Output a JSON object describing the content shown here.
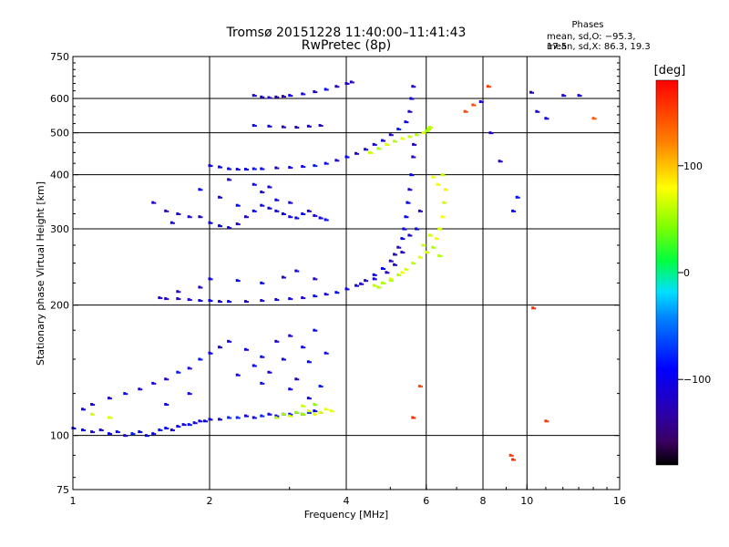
{
  "header": {
    "title": "Tromsø 20151228 11:40:00–11:41:43",
    "subtitle": "RwPretec (8p)"
  },
  "phase_info": {
    "heading": "Phases",
    "o_line": "mean, sd,O: −95.3, 17.5",
    "x_line": "mean, sd,X:  86.3, 19.3"
  },
  "colorbar": {
    "unit": "[deg]",
    "ticks": [
      {
        "value": 100,
        "label": "100"
      },
      {
        "value": 0,
        "label": "0"
      },
      {
        "value": -100,
        "label": "−100"
      }
    ],
    "range": [
      -180,
      180
    ]
  },
  "chart_data": {
    "type": "scatter",
    "xlabel": "Frequency [MHz]",
    "ylabel": "Stationary phase Virtual Height [km]",
    "xscale": "log",
    "yscale": "log",
    "xlim": [
      1,
      16
    ],
    "ylim": [
      75,
      750
    ],
    "xticks": [
      {
        "value": 1,
        "label": "1"
      },
      {
        "value": 2,
        "label": "2"
      },
      {
        "value": 4,
        "label": "4"
      },
      {
        "value": 6,
        "label": "6"
      },
      {
        "value": 8,
        "label": "8"
      },
      {
        "value": 10,
        "label": "10"
      },
      {
        "value": 16,
        "label": "16"
      }
    ],
    "yticks": [
      {
        "value": 75,
        "label": "75"
      },
      {
        "value": 100,
        "label": "100"
      },
      {
        "value": 200,
        "label": "200"
      },
      {
        "value": 300,
        "label": "300"
      },
      {
        "value": 400,
        "label": "400"
      },
      {
        "value": 500,
        "label": "500"
      },
      {
        "value": 600,
        "label": "600"
      },
      {
        "value": 750,
        "label": "750"
      }
    ],
    "grid_x": [
      2,
      4,
      6,
      8,
      10
    ],
    "grid_y": [
      100,
      200,
      300,
      400,
      500,
      600
    ],
    "grid": true,
    "color_scale": "rainbow phase [deg]",
    "series": [
      {
        "name": "",
        "color_phase": -95,
        "note": "",
        "points": [
          [
            1.0,
            104
          ],
          [
            1.05,
            103
          ],
          [
            1.1,
            102
          ],
          [
            1.15,
            103
          ],
          [
            1.2,
            101
          ],
          [
            1.25,
            102
          ],
          [
            1.3,
            100
          ],
          [
            1.35,
            101
          ],
          [
            1.4,
            102
          ],
          [
            1.45,
            100
          ],
          [
            1.5,
            101
          ],
          [
            1.55,
            103
          ],
          [
            1.6,
            104
          ],
          [
            1.65,
            103
          ],
          [
            1.7,
            105
          ],
          [
            1.75,
            106
          ],
          [
            1.8,
            106
          ],
          [
            1.85,
            107
          ],
          [
            1.9,
            108
          ],
          [
            1.95,
            108
          ],
          [
            2.0,
            109
          ],
          [
            2.1,
            109
          ],
          [
            2.2,
            110
          ],
          [
            2.3,
            110
          ],
          [
            2.4,
            111
          ],
          [
            2.5,
            110
          ],
          [
            2.6,
            111
          ],
          [
            2.7,
            112
          ],
          [
            2.8,
            111
          ],
          [
            2.9,
            112
          ],
          [
            3.0,
            112
          ],
          [
            3.1,
            113
          ],
          [
            3.2,
            112
          ],
          [
            3.3,
            113
          ],
          [
            3.4,
            114
          ],
          [
            3.5,
            113
          ]
        ]
      },
      {
        "name": "",
        "color_phase": -100,
        "points": [
          [
            1.05,
            115
          ],
          [
            1.1,
            118
          ],
          [
            1.2,
            122
          ],
          [
            1.3,
            125
          ],
          [
            1.4,
            128
          ],
          [
            1.5,
            132
          ],
          [
            1.6,
            135
          ],
          [
            1.7,
            140
          ],
          [
            1.8,
            143
          ],
          [
            1.9,
            150
          ],
          [
            2.0,
            155
          ],
          [
            2.1,
            160
          ],
          [
            2.2,
            165
          ],
          [
            2.4,
            158
          ],
          [
            2.5,
            145
          ],
          [
            2.6,
            152
          ],
          [
            2.7,
            140
          ],
          [
            2.8,
            165
          ],
          [
            2.9,
            150
          ],
          [
            3.0,
            170
          ],
          [
            3.1,
            135
          ],
          [
            3.2,
            160
          ],
          [
            3.3,
            148
          ],
          [
            3.4,
            175
          ],
          [
            3.5,
            130
          ],
          [
            3.6,
            155
          ],
          [
            1.6,
            118
          ],
          [
            1.8,
            125
          ],
          [
            2.3,
            138
          ],
          [
            2.6,
            132
          ],
          [
            3.0,
            128
          ],
          [
            3.3,
            122
          ]
        ]
      },
      {
        "name": "",
        "color_phase": 60,
        "points": [
          [
            2.8,
            110
          ],
          [
            2.9,
            112
          ],
          [
            3.0,
            111
          ],
          [
            3.1,
            113
          ],
          [
            3.2,
            112
          ],
          [
            3.3,
            114
          ],
          [
            3.4,
            112
          ],
          [
            3.5,
            113
          ],
          [
            3.6,
            115
          ],
          [
            3.7,
            114
          ],
          [
            1.2,
            110
          ],
          [
            1.1,
            112
          ],
          [
            3.2,
            117
          ],
          [
            3.4,
            118
          ]
        ]
      },
      {
        "name": "",
        "color_phase": -105,
        "points": [
          [
            1.55,
            208
          ],
          [
            1.6,
            207
          ],
          [
            1.7,
            207
          ],
          [
            1.8,
            206
          ],
          [
            1.9,
            205
          ],
          [
            2.0,
            205
          ],
          [
            2.1,
            204
          ],
          [
            2.2,
            204
          ],
          [
            2.4,
            204
          ],
          [
            2.6,
            205
          ],
          [
            2.8,
            206
          ],
          [
            3.0,
            207
          ],
          [
            3.2,
            208
          ],
          [
            3.4,
            210
          ],
          [
            3.6,
            212
          ],
          [
            3.8,
            214
          ],
          [
            4.0,
            218
          ],
          [
            4.2,
            222
          ],
          [
            4.4,
            228
          ],
          [
            4.6,
            235
          ],
          [
            4.8,
            243
          ],
          [
            5.0,
            253
          ],
          [
            5.1,
            262
          ],
          [
            5.2,
            272
          ],
          [
            5.3,
            285
          ],
          [
            5.35,
            300
          ],
          [
            5.4,
            320
          ],
          [
            5.45,
            345
          ],
          [
            5.5,
            370
          ],
          [
            5.55,
            400
          ],
          [
            5.6,
            440
          ],
          [
            5.62,
            470
          ],
          [
            1.7,
            215
          ],
          [
            1.9,
            220
          ],
          [
            2.0,
            230
          ],
          [
            2.3,
            228
          ],
          [
            2.6,
            225
          ],
          [
            2.9,
            232
          ],
          [
            3.1,
            240
          ],
          [
            3.4,
            230
          ],
          [
            4.3,
            224
          ],
          [
            4.6,
            230
          ],
          [
            4.9,
            238
          ],
          [
            5.1,
            248
          ],
          [
            5.3,
            265
          ],
          [
            5.5,
            290
          ],
          [
            5.7,
            300
          ],
          [
            5.8,
            330
          ]
        ]
      },
      {
        "name": "",
        "color_phase": 70,
        "points": [
          [
            4.6,
            222
          ],
          [
            4.8,
            225
          ],
          [
            5.0,
            230
          ],
          [
            5.2,
            235
          ],
          [
            5.4,
            242
          ],
          [
            5.6,
            250
          ],
          [
            5.8,
            258
          ],
          [
            6.0,
            265
          ],
          [
            6.2,
            272
          ],
          [
            6.3,
            285
          ],
          [
            6.4,
            300
          ],
          [
            6.5,
            320
          ],
          [
            6.55,
            345
          ],
          [
            6.6,
            370
          ],
          [
            6.2,
            395
          ],
          [
            6.35,
            380
          ],
          [
            5.9,
            275
          ],
          [
            6.1,
            290
          ],
          [
            6.4,
            260
          ],
          [
            5.3,
            238
          ],
          [
            5.0,
            228
          ],
          [
            4.7,
            220
          ],
          [
            6.5,
            400
          ]
        ]
      },
      {
        "name": "",
        "color_phase": -110,
        "points": [
          [
            1.5,
            345
          ],
          [
            1.6,
            330
          ],
          [
            1.7,
            325
          ],
          [
            1.8,
            320
          ],
          [
            1.9,
            320
          ],
          [
            2.0,
            310
          ],
          [
            2.1,
            305
          ],
          [
            2.2,
            302
          ],
          [
            2.3,
            308
          ],
          [
            2.4,
            320
          ],
          [
            2.5,
            330
          ],
          [
            2.6,
            340
          ],
          [
            2.7,
            335
          ],
          [
            2.8,
            330
          ],
          [
            2.9,
            325
          ],
          [
            3.0,
            320
          ],
          [
            3.1,
            318
          ],
          [
            3.2,
            325
          ],
          [
            3.3,
            330
          ],
          [
            3.4,
            322
          ],
          [
            3.5,
            318
          ],
          [
            3.6,
            315
          ],
          [
            1.9,
            370
          ],
          [
            2.1,
            355
          ],
          [
            2.3,
            340
          ],
          [
            2.6,
            365
          ],
          [
            2.8,
            350
          ],
          [
            3.0,
            345
          ],
          [
            2.2,
            390
          ],
          [
            2.5,
            380
          ],
          [
            2.7,
            375
          ],
          [
            1.65,
            310
          ]
        ]
      },
      {
        "name": "",
        "color_phase": -100,
        "points": [
          [
            2.0,
            420
          ],
          [
            2.1,
            417
          ],
          [
            2.2,
            413
          ],
          [
            2.3,
            412
          ],
          [
            2.4,
            412
          ],
          [
            2.5,
            413
          ],
          [
            2.6,
            413
          ],
          [
            2.8,
            415
          ],
          [
            3.0,
            416
          ],
          [
            3.2,
            418
          ],
          [
            3.4,
            420
          ],
          [
            3.6,
            425
          ],
          [
            3.8,
            432
          ],
          [
            4.0,
            440
          ],
          [
            4.2,
            448
          ],
          [
            4.4,
            458
          ],
          [
            4.6,
            470
          ],
          [
            4.8,
            480
          ],
          [
            5.0,
            495
          ],
          [
            5.2,
            510
          ],
          [
            5.4,
            530
          ],
          [
            5.5,
            560
          ],
          [
            5.55,
            600
          ],
          [
            5.6,
            640
          ]
        ]
      },
      {
        "name": "",
        "color_phase": 60,
        "points": [
          [
            4.5,
            450
          ],
          [
            4.7,
            460
          ],
          [
            4.9,
            470
          ],
          [
            5.1,
            478
          ],
          [
            5.3,
            485
          ],
          [
            5.5,
            490
          ],
          [
            5.7,
            495
          ],
          [
            5.9,
            500
          ],
          [
            6.0,
            505
          ],
          [
            6.05,
            510
          ],
          [
            6.1,
            515
          ]
        ]
      },
      {
        "name": "",
        "color_phase": -110,
        "points": [
          [
            2.5,
            520
          ],
          [
            2.7,
            518
          ],
          [
            2.9,
            516
          ],
          [
            3.1,
            515
          ],
          [
            3.3,
            518
          ],
          [
            3.5,
            520
          ],
          [
            2.5,
            610
          ],
          [
            2.6,
            605
          ],
          [
            2.7,
            603
          ],
          [
            2.8,
            605
          ],
          [
            2.9,
            607
          ],
          [
            3.0,
            610
          ],
          [
            3.2,
            615
          ],
          [
            3.4,
            622
          ],
          [
            3.6,
            630
          ],
          [
            3.8,
            640
          ],
          [
            4.0,
            650
          ],
          [
            4.1,
            655
          ]
        ]
      },
      {
        "name": "",
        "color_phase": -100,
        "points": [
          [
            7.9,
            590
          ],
          [
            8.3,
            500
          ],
          [
            8.7,
            430
          ],
          [
            9.3,
            330
          ],
          [
            9.5,
            355
          ],
          [
            10.2,
            620
          ],
          [
            11.0,
            540
          ],
          [
            12.0,
            610
          ],
          [
            13.0,
            610
          ],
          [
            10.5,
            560
          ]
        ]
      },
      {
        "name": "",
        "color_phase": 150,
        "points": [
          [
            8.2,
            640
          ],
          [
            7.3,
            560
          ],
          [
            14.0,
            540
          ],
          [
            9.2,
            90
          ],
          [
            9.3,
            88
          ],
          [
            10.3,
            197
          ],
          [
            5.8,
            130
          ],
          [
            5.6,
            110
          ],
          [
            11.0,
            108
          ],
          [
            7.6,
            580
          ]
        ]
      }
    ]
  }
}
